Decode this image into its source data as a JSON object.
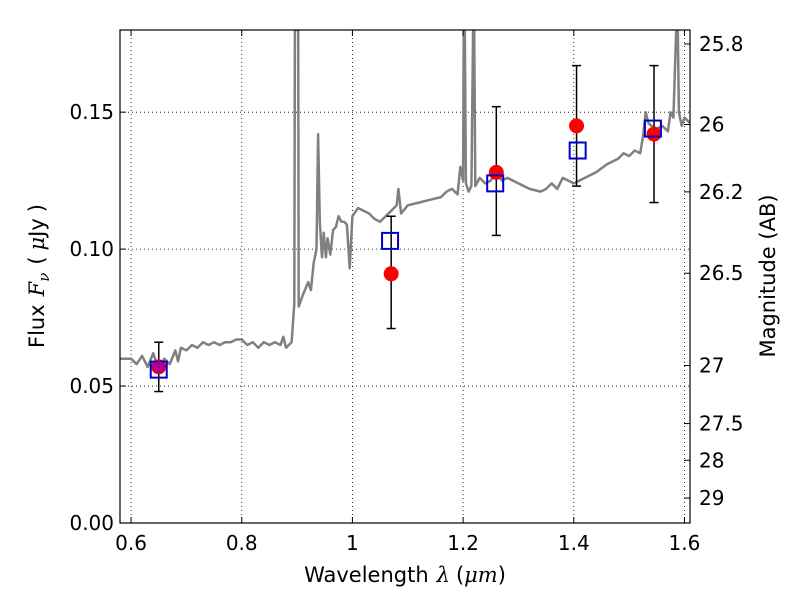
{
  "chart_data": {
    "type": "scatter",
    "title": "",
    "xlabel": "Wavelength λ (μm)",
    "xlabel_parts": {
      "main": "Wavelength",
      "symbol": "λ",
      "open": "(",
      "unit": "μm",
      "close": ")"
    },
    "ylabel": "Flux F_ν ( μJy )",
    "ylabel_parts": {
      "main": "Flux",
      "symbol": "F",
      "subscript": "ν",
      "open": "(",
      "unit_greek": "μ",
      "unit": "Jy",
      "close": ")"
    },
    "y2label": "Magnitude (AB)",
    "xlim": [
      0.58,
      1.61
    ],
    "ylim": [
      0.0,
      0.18
    ],
    "grid": true,
    "x_ticks": [
      {
        "value": 0.6,
        "label": "0.6"
      },
      {
        "value": 0.8,
        "label": "0.8"
      },
      {
        "value": 1.0,
        "label": "1"
      },
      {
        "value": 1.2,
        "label": "1.2"
      },
      {
        "value": 1.4,
        "label": "1.4"
      },
      {
        "value": 1.6,
        "label": "1.6"
      }
    ],
    "y_ticks": [
      {
        "value": 0.0,
        "label": "0.00"
      },
      {
        "value": 0.05,
        "label": "0.05"
      },
      {
        "value": 0.1,
        "label": "0.10"
      },
      {
        "value": 0.15,
        "label": "0.15"
      }
    ],
    "y2_ticks": [
      {
        "flux": 0.1749,
        "label": "25.8"
      },
      {
        "flux": 0.1455,
        "label": "26"
      },
      {
        "flux": 0.1209,
        "label": "26.2"
      },
      {
        "flux": 0.0912,
        "label": "26.5"
      },
      {
        "flux": 0.0575,
        "label": "27"
      },
      {
        "flux": 0.0363,
        "label": "27.5"
      },
      {
        "flux": 0.0229,
        "label": "28"
      },
      {
        "flux": 0.0091,
        "label": "29"
      }
    ],
    "series": [
      {
        "name": "model spectrum",
        "kind": "line",
        "color": "#808080",
        "points": [
          [
            0.58,
            0.06
          ],
          [
            0.6,
            0.06
          ],
          [
            0.61,
            0.058
          ],
          [
            0.62,
            0.061
          ],
          [
            0.63,
            0.057
          ],
          [
            0.64,
            0.062
          ],
          [
            0.65,
            0.056
          ],
          [
            0.66,
            0.06
          ],
          [
            0.67,
            0.058
          ],
          [
            0.68,
            0.063
          ],
          [
            0.685,
            0.059
          ],
          [
            0.69,
            0.064
          ],
          [
            0.7,
            0.063
          ],
          [
            0.71,
            0.065
          ],
          [
            0.72,
            0.064
          ],
          [
            0.73,
            0.066
          ],
          [
            0.74,
            0.065
          ],
          [
            0.75,
            0.066
          ],
          [
            0.76,
            0.065
          ],
          [
            0.77,
            0.066
          ],
          [
            0.78,
            0.066
          ],
          [
            0.79,
            0.067
          ],
          [
            0.8,
            0.067
          ],
          [
            0.81,
            0.065
          ],
          [
            0.82,
            0.066
          ],
          [
            0.83,
            0.064
          ],
          [
            0.84,
            0.066
          ],
          [
            0.85,
            0.065
          ],
          [
            0.86,
            0.066
          ],
          [
            0.87,
            0.065
          ],
          [
            0.875,
            0.068
          ],
          [
            0.88,
            0.064
          ],
          [
            0.885,
            0.065
          ],
          [
            0.89,
            0.066
          ],
          [
            0.895,
            0.08
          ],
          [
            0.896,
            0.18
          ],
          [
            0.902,
            0.18
          ],
          [
            0.903,
            0.079
          ],
          [
            0.91,
            0.083
          ],
          [
            0.92,
            0.088
          ],
          [
            0.925,
            0.085
          ],
          [
            0.93,
            0.095
          ],
          [
            0.935,
            0.1
          ],
          [
            0.938,
            0.142
          ],
          [
            0.941,
            0.11
          ],
          [
            0.945,
            0.097
          ],
          [
            0.948,
            0.106
          ],
          [
            0.952,
            0.097
          ],
          [
            0.955,
            0.104
          ],
          [
            0.96,
            0.098
          ],
          [
            0.965,
            0.107
          ],
          [
            0.97,
            0.108
          ],
          [
            0.975,
            0.112
          ],
          [
            0.98,
            0.11
          ],
          [
            0.985,
            0.11
          ],
          [
            0.99,
            0.109
          ],
          [
            0.995,
            0.093
          ],
          [
            1.0,
            0.112
          ],
          [
            1.01,
            0.115
          ],
          [
            1.02,
            0.114
          ],
          [
            1.03,
            0.113
          ],
          [
            1.04,
            0.111
          ],
          [
            1.05,
            0.11
          ],
          [
            1.06,
            0.112
          ],
          [
            1.07,
            0.114
          ],
          [
            1.08,
            0.116
          ],
          [
            1.083,
            0.122
          ],
          [
            1.088,
            0.113
          ],
          [
            1.1,
            0.116
          ],
          [
            1.12,
            0.117
          ],
          [
            1.14,
            0.118
          ],
          [
            1.16,
            0.119
          ],
          [
            1.17,
            0.121
          ],
          [
            1.18,
            0.122
          ],
          [
            1.19,
            0.12
          ],
          [
            1.195,
            0.13
          ],
          [
            1.2,
            0.125
          ],
          [
            1.201,
            0.18
          ],
          [
            1.203,
            0.18
          ],
          [
            1.205,
            0.124
          ],
          [
            1.21,
            0.121
          ],
          [
            1.215,
            0.123
          ],
          [
            1.218,
            0.18
          ],
          [
            1.22,
            0.18
          ],
          [
            1.222,
            0.123
          ],
          [
            1.23,
            0.126
          ],
          [
            1.24,
            0.124
          ],
          [
            1.25,
            0.125
          ],
          [
            1.26,
            0.129
          ],
          [
            1.27,
            0.125
          ],
          [
            1.28,
            0.126
          ],
          [
            1.3,
            0.124
          ],
          [
            1.32,
            0.122
          ],
          [
            1.34,
            0.121
          ],
          [
            1.35,
            0.122
          ],
          [
            1.36,
            0.124
          ],
          [
            1.37,
            0.122
          ],
          [
            1.38,
            0.126
          ],
          [
            1.4,
            0.124
          ],
          [
            1.42,
            0.126
          ],
          [
            1.44,
            0.128
          ],
          [
            1.46,
            0.131
          ],
          [
            1.48,
            0.133
          ],
          [
            1.49,
            0.135
          ],
          [
            1.5,
            0.134
          ],
          [
            1.51,
            0.136
          ],
          [
            1.52,
            0.135
          ],
          [
            1.525,
            0.141
          ],
          [
            1.53,
            0.15
          ],
          [
            1.535,
            0.146
          ],
          [
            1.54,
            0.145
          ],
          [
            1.55,
            0.144
          ],
          [
            1.56,
            0.145
          ],
          [
            1.57,
            0.143
          ],
          [
            1.575,
            0.15
          ],
          [
            1.58,
            0.148
          ],
          [
            1.585,
            0.18
          ],
          [
            1.588,
            0.18
          ],
          [
            1.59,
            0.15
          ],
          [
            1.595,
            0.145
          ],
          [
            1.6,
            0.148
          ],
          [
            1.61,
            0.146
          ]
        ]
      },
      {
        "name": "observed photometry",
        "kind": "scatter",
        "marker": "circle",
        "color": "#ff0000",
        "x": [
          0.65,
          1.07,
          1.26,
          1.405,
          1.545
        ],
        "y": [
          0.057,
          0.091,
          0.128,
          0.145,
          0.142
        ],
        "yerr_low": [
          0.048,
          0.071,
          0.105,
          0.123,
          0.117
        ],
        "yerr_high": [
          0.066,
          0.112,
          0.152,
          0.167,
          0.167
        ]
      },
      {
        "name": "model photometry",
        "kind": "scatter",
        "marker": "square-open",
        "color": "#0000cc",
        "x": [
          0.65,
          1.068,
          1.258,
          1.407,
          1.543
        ],
        "y": [
          0.056,
          0.103,
          0.124,
          0.136,
          0.144
        ]
      }
    ]
  }
}
